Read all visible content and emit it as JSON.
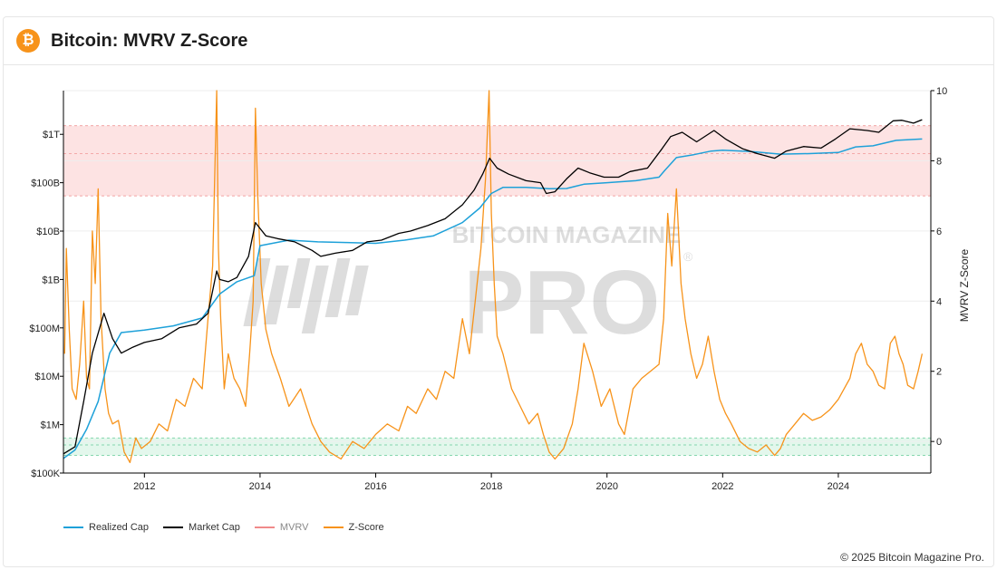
{
  "header": {
    "icon": "bitcoin-icon",
    "logo_glyph": "₿",
    "title": "Bitcoin: MVRV Z-Score"
  },
  "watermark": {
    "line1": "BITCOIN MAGAZINE",
    "line2": "PRO",
    "mark": "®"
  },
  "footer": {
    "credit": "© 2025 Bitcoin Magazine Pro."
  },
  "colors": {
    "realized_cap": "#1ea1d9",
    "market_cap": "#000000",
    "mvrv": "#f08a8a",
    "zscore": "#f7931a",
    "top_band": "#fde3e3",
    "bottom_band": "#e3f7ec"
  },
  "chart_data": {
    "type": "line",
    "title": "Bitcoin: MVRV Z-Score",
    "ylabel_right": "MVRV Z-Score",
    "x_ticks": [
      "2012",
      "2014",
      "2016",
      "2018",
      "2020",
      "2022",
      "2024"
    ],
    "x_range": [
      2010.6,
      2025.6
    ],
    "y_left": {
      "scale": "log",
      "range": [
        100000,
        8000000000000
      ],
      "ticks": [
        {
          "value": 100000,
          "label": "$100K"
        },
        {
          "value": 1000000,
          "label": "$1M"
        },
        {
          "value": 10000000,
          "label": "$10M"
        },
        {
          "value": 100000000,
          "label": "$100M"
        },
        {
          "value": 1000000000,
          "label": "$1B"
        },
        {
          "value": 10000000000,
          "label": "$10B"
        },
        {
          "value": 100000000000,
          "label": "$100B"
        },
        {
          "value": 1000000000000,
          "label": "$1T"
        }
      ]
    },
    "y_right": {
      "range": [
        -0.9,
        10
      ],
      "ticks": [
        0,
        2,
        4,
        6,
        8,
        10
      ]
    },
    "bands": [
      {
        "name": "top",
        "from": 7,
        "to": 9.0,
        "mid": 8.2
      },
      {
        "name": "bottom",
        "from": -0.4,
        "to": 0.1,
        "mid": -0.1
      }
    ],
    "legend": [
      {
        "name": "Realized Cap",
        "color": "#1ea1d9"
      },
      {
        "name": "Market Cap",
        "color": "#000000"
      },
      {
        "name": "MVRV",
        "color": "#f08a8a"
      },
      {
        "name": "Z-Score",
        "color": "#f7931a"
      }
    ],
    "series": [
      {
        "name": "Market Cap",
        "axis": "left",
        "x": [
          2010.6,
          2010.8,
          2010.95,
          2011.1,
          2011.3,
          2011.45,
          2011.6,
          2011.8,
          2012.0,
          2012.3,
          2012.6,
          2012.9,
          2013.1,
          2013.25,
          2013.3,
          2013.45,
          2013.6,
          2013.8,
          2013.92,
          2014.1,
          2014.3,
          2014.6,
          2014.9,
          2015.05,
          2015.3,
          2015.6,
          2015.85,
          2016.1,
          2016.4,
          2016.6,
          2016.9,
          2017.2,
          2017.5,
          2017.7,
          2017.85,
          2017.97,
          2018.1,
          2018.3,
          2018.6,
          2018.85,
          2018.95,
          2019.1,
          2019.3,
          2019.5,
          2019.7,
          2019.95,
          2020.2,
          2020.4,
          2020.7,
          2020.95,
          2021.1,
          2021.3,
          2021.55,
          2021.85,
          2022.05,
          2022.35,
          2022.6,
          2022.9,
          2023.1,
          2023.4,
          2023.7,
          2023.95,
          2024.2,
          2024.5,
          2024.7,
          2024.95,
          2025.1,
          2025.3,
          2025.45
        ],
        "values": [
          250000,
          350000,
          3000000,
          30000000,
          200000000,
          60000000,
          30000000,
          40000000,
          50000000,
          60000000,
          100000000,
          120000000,
          200000000,
          1500000000,
          1000000000,
          900000000,
          1100000000,
          3000000000,
          15000000000,
          8000000000,
          7000000000,
          6000000000,
          4000000000,
          3000000000,
          3500000000,
          4000000000,
          6000000000,
          6500000000,
          9000000000,
          10000000000,
          13000000000,
          18000000000,
          35000000000,
          70000000000,
          150000000000,
          320000000000,
          200000000000,
          150000000000,
          110000000000,
          100000000000,
          60000000000,
          65000000000,
          120000000000,
          200000000000,
          160000000000,
          130000000000,
          130000000000,
          170000000000,
          200000000000,
          500000000000,
          900000000000,
          1100000000000,
          700000000000,
          1200000000000,
          800000000000,
          500000000000,
          400000000000,
          320000000000,
          450000000000,
          560000000000,
          520000000000,
          800000000000,
          1300000000000,
          1200000000000,
          1100000000000,
          1900000000000,
          1950000000000,
          1700000000000,
          2000000000000
        ]
      },
      {
        "name": "Realized Cap",
        "axis": "left",
        "x": [
          2010.6,
          2010.8,
          2011.0,
          2011.2,
          2011.4,
          2011.6,
          2012.0,
          2012.5,
          2013.0,
          2013.3,
          2013.6,
          2013.9,
          2014.0,
          2014.5,
          2015.0,
          2015.5,
          2016.0,
          2016.5,
          2017.0,
          2017.5,
          2017.8,
          2018.0,
          2018.2,
          2018.6,
          2019.0,
          2019.3,
          2019.6,
          2020.0,
          2020.5,
          2020.9,
          2021.0,
          2021.2,
          2021.5,
          2021.8,
          2022.0,
          2022.5,
          2023.0,
          2023.5,
          2024.0,
          2024.3,
          2024.6,
          2025.0,
          2025.45
        ],
        "values": [
          200000,
          300000,
          800000,
          3000000,
          30000000,
          80000000,
          90000000,
          110000000,
          160000000,
          500000000,
          900000000,
          1200000000,
          5000000000,
          6500000000,
          6000000000,
          5800000000,
          5600000000,
          6500000000,
          8000000000,
          15000000000,
          30000000000,
          60000000000,
          80000000000,
          80000000000,
          75000000000,
          76000000000,
          93000000000,
          100000000000,
          110000000000,
          130000000000,
          180000000000,
          330000000000,
          380000000000,
          450000000000,
          470000000000,
          440000000000,
          390000000000,
          400000000000,
          420000000000,
          550000000000,
          580000000000,
          750000000000,
          800000000000
        ]
      },
      {
        "name": "Z-Score",
        "axis": "right",
        "x": [
          2010.62,
          2010.65,
          2010.7,
          2010.75,
          2010.82,
          2010.88,
          2010.95,
          2011.0,
          2011.05,
          2011.1,
          2011.15,
          2011.2,
          2011.25,
          2011.32,
          2011.38,
          2011.45,
          2011.55,
          2011.65,
          2011.75,
          2011.85,
          2011.95,
          2012.1,
          2012.25,
          2012.4,
          2012.55,
          2012.7,
          2012.85,
          2013.0,
          2013.1,
          2013.18,
          2013.25,
          2013.28,
          2013.32,
          2013.38,
          2013.45,
          2013.55,
          2013.65,
          2013.75,
          2013.82,
          2013.88,
          2013.92,
          2013.96,
          2014.02,
          2014.1,
          2014.2,
          2014.35,
          2014.5,
          2014.7,
          2014.9,
          2015.05,
          2015.2,
          2015.4,
          2015.6,
          2015.8,
          2016.0,
          2016.2,
          2016.4,
          2016.55,
          2016.7,
          2016.9,
          2017.05,
          2017.2,
          2017.35,
          2017.5,
          2017.62,
          2017.72,
          2017.82,
          2017.9,
          2017.96,
          2018.0,
          2018.05,
          2018.1,
          2018.2,
          2018.35,
          2018.5,
          2018.65,
          2018.8,
          2018.9,
          2019.0,
          2019.1,
          2019.25,
          2019.4,
          2019.5,
          2019.6,
          2019.75,
          2019.9,
          2020.05,
          2020.2,
          2020.3,
          2020.45,
          2020.6,
          2020.75,
          2020.9,
          2020.98,
          2021.05,
          2021.12,
          2021.2,
          2021.28,
          2021.35,
          2021.45,
          2021.55,
          2021.65,
          2021.75,
          2021.85,
          2021.95,
          2022.05,
          2022.15,
          2022.3,
          2022.45,
          2022.6,
          2022.75,
          2022.9,
          2023.0,
          2023.1,
          2023.25,
          2023.4,
          2023.55,
          2023.7,
          2023.85,
          2024.0,
          2024.1,
          2024.2,
          2024.3,
          2024.4,
          2024.5,
          2024.6,
          2024.7,
          2024.8,
          2024.9,
          2024.98,
          2025.05,
          2025.12,
          2025.2,
          2025.3,
          2025.38,
          2025.45
        ],
        "values": [
          2.5,
          5.5,
          3.2,
          1.5,
          1.2,
          2.2,
          4.0,
          1.8,
          1.5,
          6.0,
          4.5,
          7.2,
          3.5,
          1.5,
          0.8,
          0.5,
          0.6,
          -0.3,
          -0.6,
          0.1,
          -0.2,
          0.0,
          0.5,
          0.3,
          1.2,
          1.0,
          1.8,
          1.5,
          3.5,
          5.0,
          10.0,
          5.5,
          3.5,
          1.5,
          2.5,
          1.8,
          1.5,
          1.0,
          2.5,
          4.0,
          9.5,
          7.0,
          4.5,
          3.2,
          2.5,
          1.8,
          1.0,
          1.5,
          0.5,
          0.0,
          -0.3,
          -0.5,
          0.0,
          -0.2,
          0.2,
          0.5,
          0.3,
          1.0,
          0.8,
          1.5,
          1.2,
          2.0,
          1.8,
          3.5,
          2.5,
          4.0,
          5.5,
          7.5,
          10.0,
          6.5,
          4.5,
          3.0,
          2.5,
          1.5,
          1.0,
          0.5,
          0.8,
          0.2,
          -0.3,
          -0.5,
          -0.2,
          0.5,
          1.5,
          2.8,
          2.0,
          1.0,
          1.5,
          0.5,
          0.2,
          1.5,
          1.8,
          2.0,
          2.2,
          3.5,
          6.5,
          5.0,
          7.2,
          4.5,
          3.5,
          2.5,
          1.8,
          2.2,
          3.0,
          2.0,
          1.2,
          0.8,
          0.5,
          0.0,
          -0.2,
          -0.3,
          -0.1,
          -0.4,
          -0.2,
          0.2,
          0.5,
          0.8,
          0.6,
          0.7,
          0.9,
          1.2,
          1.5,
          1.8,
          2.5,
          2.8,
          2.2,
          2.0,
          1.6,
          1.5,
          2.8,
          3.0,
          2.5,
          2.2,
          1.6,
          1.5,
          2.0,
          2.5
        ]
      }
    ]
  }
}
